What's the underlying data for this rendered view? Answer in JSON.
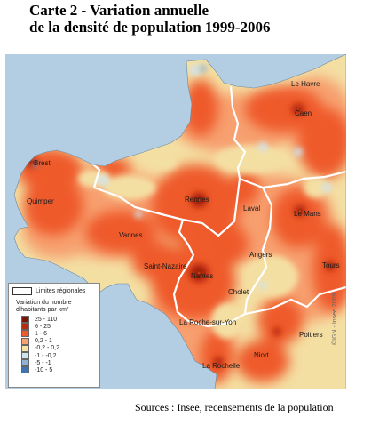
{
  "title": {
    "line1": "Carte 2 - Variation annuelle",
    "line2": "de la densité de population 1999-2006"
  },
  "colors": {
    "sea": "#b3cee2",
    "land_base": "#f4dfa3",
    "boundary": "#ffffff"
  },
  "cities": [
    {
      "id": "le-havre",
      "label": "Le Havre"
    },
    {
      "id": "caen",
      "label": "Caen"
    },
    {
      "id": "brest",
      "label": "Brest"
    },
    {
      "id": "quimper",
      "label": "Quimper"
    },
    {
      "id": "rennes",
      "label": "Rennes"
    },
    {
      "id": "laval",
      "label": "Laval"
    },
    {
      "id": "le-mans",
      "label": "Le Mans"
    },
    {
      "id": "vannes",
      "label": "Vannes"
    },
    {
      "id": "angers",
      "label": "Angers"
    },
    {
      "id": "tours",
      "label": "Tours"
    },
    {
      "id": "saint-nazaire",
      "label": "Saint-Nazaire"
    },
    {
      "id": "nantes",
      "label": "Nantes"
    },
    {
      "id": "cholet",
      "label": "Cholet"
    },
    {
      "id": "la-roche-sur-yon",
      "label": "La Roche-sur-Yon"
    },
    {
      "id": "poitiers",
      "label": "Poitiers"
    },
    {
      "id": "niort",
      "label": "Niort"
    },
    {
      "id": "la-rochelle",
      "label": "La Rochelle"
    }
  ],
  "legend": {
    "boundary_label": "Limites régionales",
    "heading": "Variation du nombre d'habitants par km²",
    "classes": [
      {
        "label": "25 - 110",
        "color": "#7a1405"
      },
      {
        "label": "6 - 25",
        "color": "#b92a0e"
      },
      {
        "label": "1 - 6",
        "color": "#ef5a2a"
      },
      {
        "label": "0,2 - 1",
        "color": "#f7a070"
      },
      {
        "label": "-0,2 - 0,2",
        "color": "#f6e3a6"
      },
      {
        "label": "-1 - -0,2",
        "color": "#cfe3ef"
      },
      {
        "label": "-5 - -1",
        "color": "#8eb3d6"
      },
      {
        "label": "-10 - 5",
        "color": "#3f74b3"
      }
    ]
  },
  "credit": "©IGN - Insee 2009",
  "sources": "Sources : Insee, recensements  de la population"
}
